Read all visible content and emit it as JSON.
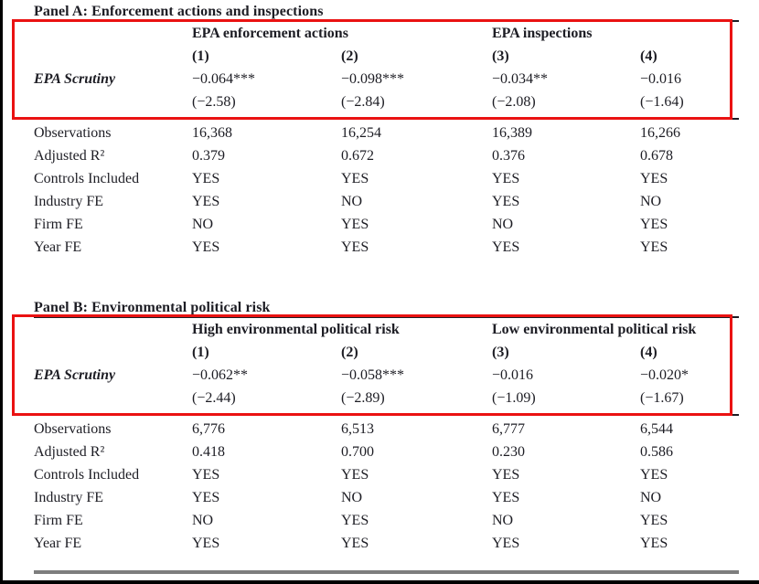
{
  "colors": {
    "highlight_red": "#ea1212",
    "text": "#1d1d24",
    "rule_black": "#1d1d24",
    "rule_gray": "#7d7d7d"
  },
  "panels": [
    {
      "title": "Panel A: Enforcement actions and inspections",
      "group_headers": [
        "EPA enforcement actions",
        "EPA inspections"
      ],
      "column_numbers": [
        "(1)",
        "(2)",
        "(3)",
        "(4)"
      ],
      "coef_row": {
        "label": "EPA Scrutiny",
        "coefficients": [
          "−0.064***",
          "−0.098***",
          "−0.034**",
          "−0.016"
        ],
        "t_stats": [
          "(−2.58)",
          "(−2.84)",
          "(−2.08)",
          "(−1.64)"
        ]
      },
      "stat_rows": [
        {
          "label": "Observations",
          "values": [
            "16,368",
            "16,254",
            "16,389",
            "16,266"
          ]
        },
        {
          "label": "Adjusted R²",
          "values": [
            "0.379",
            "0.672",
            "0.376",
            "0.678"
          ]
        },
        {
          "label": "Controls Included",
          "values": [
            "YES",
            "YES",
            "YES",
            "YES"
          ]
        },
        {
          "label": "Industry FE",
          "values": [
            "YES",
            "NO",
            "YES",
            "NO"
          ]
        },
        {
          "label": "Firm FE",
          "values": [
            "NO",
            "YES",
            "NO",
            "YES"
          ]
        },
        {
          "label": "Year FE",
          "values": [
            "YES",
            "YES",
            "YES",
            "YES"
          ]
        }
      ]
    },
    {
      "title": "Panel B: Environmental political risk",
      "group_headers": [
        "High environmental political risk",
        "Low environmental political risk"
      ],
      "column_numbers": [
        "(1)",
        "(2)",
        "(3)",
        "(4)"
      ],
      "coef_row": {
        "label": "EPA Scrutiny",
        "coefficients": [
          "−0.062**",
          "−0.058***",
          "−0.016",
          "−0.020*"
        ],
        "t_stats": [
          "(−2.44)",
          "(−2.89)",
          "(−1.09)",
          "(−1.67)"
        ]
      },
      "stat_rows": [
        {
          "label": "Observations",
          "values": [
            "6,776",
            "6,513",
            "6,777",
            "6,544"
          ]
        },
        {
          "label": "Adjusted R²",
          "values": [
            "0.418",
            "0.700",
            "0.230",
            "0.586"
          ]
        },
        {
          "label": "Controls Included",
          "values": [
            "YES",
            "YES",
            "YES",
            "YES"
          ]
        },
        {
          "label": "Industry FE",
          "values": [
            "YES",
            "NO",
            "YES",
            "NO"
          ]
        },
        {
          "label": "Firm FE",
          "values": [
            "NO",
            "YES",
            "NO",
            "YES"
          ]
        },
        {
          "label": "Year FE",
          "values": [
            "YES",
            "YES",
            "YES",
            "YES"
          ]
        }
      ]
    }
  ]
}
